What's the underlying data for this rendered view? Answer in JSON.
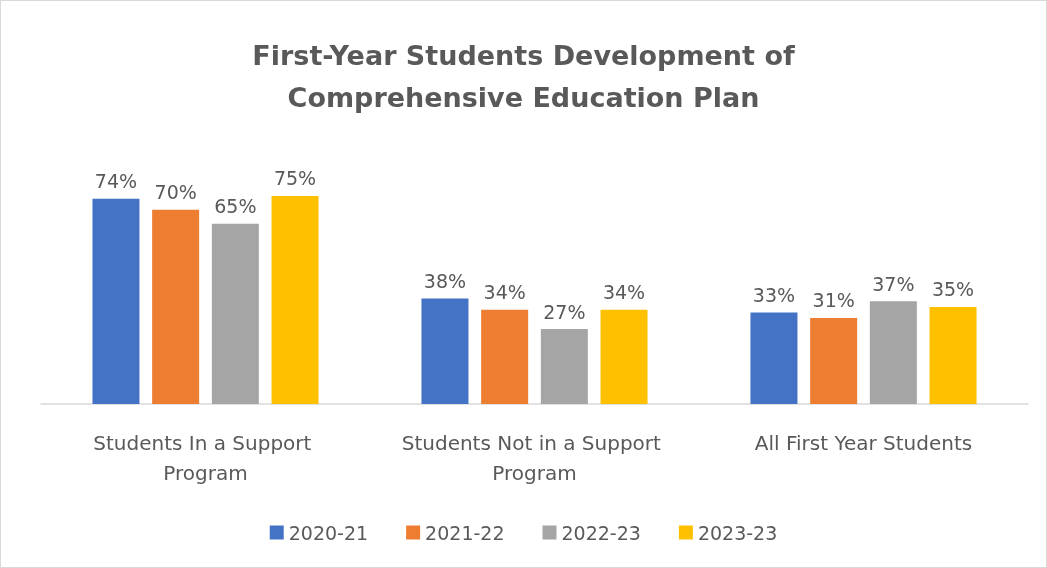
{
  "chart_data": {
    "type": "bar",
    "title": "First-Year Students Development of\nComprehensive Education Plan",
    "categories": [
      "Students In a Support Program",
      "Students Not in a Support Program",
      "All First Year Students"
    ],
    "series": [
      {
        "name": "2020-21",
        "color": "#4472c4",
        "values": [
          74,
          38,
          33
        ],
        "value_labels": [
          "74%",
          "38%",
          "33%"
        ]
      },
      {
        "name": "2021-22",
        "color": "#ed7d31",
        "values": [
          70,
          34,
          31
        ],
        "value_labels": [
          "70%",
          "34%",
          "31%"
        ]
      },
      {
        "name": "2022-23",
        "color": "#a5a5a5",
        "values": [
          65,
          27,
          37
        ],
        "value_labels": [
          "65%",
          "27%",
          "37%"
        ]
      },
      {
        "name": "2023-23",
        "color": "#ffc000",
        "values": [
          75,
          34,
          35
        ],
        "value_labels": [
          "75%",
          "34%",
          "35%"
        ]
      }
    ],
    "legend": "bottom"
  }
}
